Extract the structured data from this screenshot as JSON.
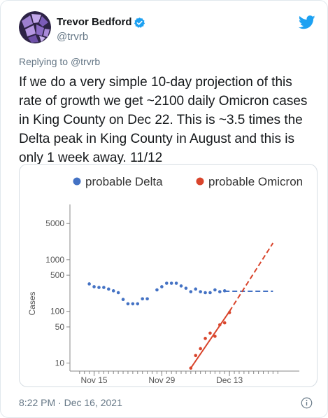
{
  "user": {
    "name": "Trevor Bedford",
    "handle": "@trvrb",
    "verified": true
  },
  "reply": {
    "prefix": "Replying to ",
    "to": "@trvrb"
  },
  "tweet": {
    "text": "If we do a very simple 10-day projection of this rate of growth we get ~2100 daily Omicron cases in King County on Dec 22. This is ~3.5 times the Delta peak in King County in August and this is only 1 week away. 11/12",
    "timestamp": "8:22 PM · Dec 16, 2021"
  },
  "icons": {
    "brand": "twitter-bird-icon",
    "verified": "verified-badge-icon",
    "info": "info-icon"
  },
  "colors": {
    "twitter_blue": "#1da1f2",
    "delta": "#4472c4",
    "omicron": "#d9452c"
  },
  "chart_data": {
    "type": "scatter",
    "title": "",
    "xlabel": "",
    "ylabel": "Cases",
    "y_scale": "log",
    "ylim": [
      7,
      10000
    ],
    "xlim": [
      "2021-11-10",
      "2021-12-26"
    ],
    "x_ticks": [
      "Nov 15",
      "Nov 29",
      "Dec 13"
    ],
    "y_ticks": [
      10,
      50,
      100,
      500,
      1000,
      5000
    ],
    "grid": false,
    "legend_position": "top",
    "series": [
      {
        "name": "probable Delta",
        "color": "#4472c4",
        "points": [
          {
            "x": "2021-11-14",
            "y": 340
          },
          {
            "x": "2021-11-15",
            "y": 300
          },
          {
            "x": "2021-11-16",
            "y": 290
          },
          {
            "x": "2021-11-17",
            "y": 290
          },
          {
            "x": "2021-11-18",
            "y": 270
          },
          {
            "x": "2021-11-19",
            "y": 250
          },
          {
            "x": "2021-11-20",
            "y": 230
          },
          {
            "x": "2021-11-21",
            "y": 170
          },
          {
            "x": "2021-11-22",
            "y": 140
          },
          {
            "x": "2021-11-23",
            "y": 140
          },
          {
            "x": "2021-11-24",
            "y": 140
          },
          {
            "x": "2021-11-25",
            "y": 175
          },
          {
            "x": "2021-11-26",
            "y": 175
          },
          {
            "x": "2021-11-28",
            "y": 260
          },
          {
            "x": "2021-11-29",
            "y": 300
          },
          {
            "x": "2021-11-30",
            "y": 350
          },
          {
            "x": "2021-12-01",
            "y": 350
          },
          {
            "x": "2021-12-02",
            "y": 350
          },
          {
            "x": "2021-12-03",
            "y": 310
          },
          {
            "x": "2021-12-04",
            "y": 280
          },
          {
            "x": "2021-12-05",
            "y": 240
          },
          {
            "x": "2021-12-06",
            "y": 270
          },
          {
            "x": "2021-12-07",
            "y": 240
          },
          {
            "x": "2021-12-08",
            "y": 230
          },
          {
            "x": "2021-12-09",
            "y": 230
          },
          {
            "x": "2021-12-10",
            "y": 260
          },
          {
            "x": "2021-12-11",
            "y": 240
          },
          {
            "x": "2021-12-12",
            "y": 250
          }
        ],
        "projection": [
          {
            "x": "2021-12-12",
            "y": 245
          },
          {
            "x": "2021-12-22",
            "y": 245
          }
        ]
      },
      {
        "name": "probable Omicron",
        "color": "#d9452c",
        "points": [
          {
            "x": "2021-12-05",
            "y": 8
          },
          {
            "x": "2021-12-06",
            "y": 14
          },
          {
            "x": "2021-12-07",
            "y": 19
          },
          {
            "x": "2021-12-08",
            "y": 30
          },
          {
            "x": "2021-12-09",
            "y": 38
          },
          {
            "x": "2021-12-10",
            "y": 33
          },
          {
            "x": "2021-12-11",
            "y": 55
          },
          {
            "x": "2021-12-12",
            "y": 60
          },
          {
            "x": "2021-12-13",
            "y": 95
          }
        ],
        "fit": [
          {
            "x": "2021-12-05",
            "y": 8
          },
          {
            "x": "2021-12-13",
            "y": 100
          }
        ],
        "projection": [
          {
            "x": "2021-12-13",
            "y": 100
          },
          {
            "x": "2021-12-22",
            "y": 2100
          }
        ]
      }
    ]
  }
}
